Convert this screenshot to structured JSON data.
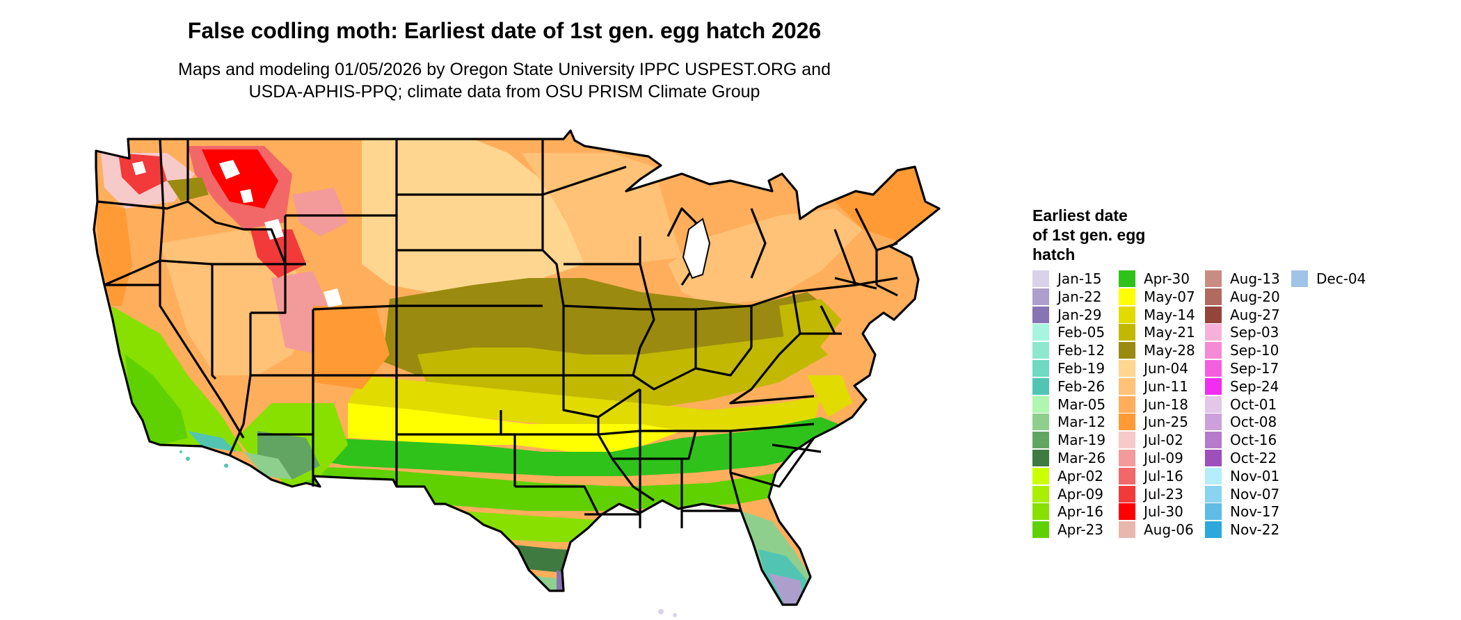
{
  "title": "False codling moth: Earliest date of 1st gen. egg hatch 2026",
  "subtitle_line1": "Maps and modeling 01/05/2026 by Oregon State University IPPC USPEST.ORG and",
  "subtitle_line2": "USDA-APHIS-PPQ; climate data from OSU PRISM Climate Group",
  "legend": {
    "title_lines": [
      "Earliest date",
      "of 1st gen. egg",
      "hatch"
    ],
    "entries": [
      {
        "label": "Jan-15",
        "color": "#dad2ea"
      },
      {
        "label": "Jan-22",
        "color": "#ad9fcb"
      },
      {
        "label": "Jan-29",
        "color": "#8774b4"
      },
      {
        "label": "Feb-05",
        "color": "#a8f5df"
      },
      {
        "label": "Feb-12",
        "color": "#8ee7cf"
      },
      {
        "label": "Feb-19",
        "color": "#6fd9c2"
      },
      {
        "label": "Feb-26",
        "color": "#52c5b2"
      },
      {
        "label": "Mar-05",
        "color": "#b0f6b0"
      },
      {
        "label": "Mar-12",
        "color": "#8ecf8e"
      },
      {
        "label": "Mar-19",
        "color": "#62a563"
      },
      {
        "label": "Mar-26",
        "color": "#3f7a41"
      },
      {
        "label": "Apr-02",
        "color": "#ccff00"
      },
      {
        "label": "Apr-09",
        "color": "#aaee00"
      },
      {
        "label": "Apr-16",
        "color": "#88e000"
      },
      {
        "label": "Apr-23",
        "color": "#5fd100"
      },
      {
        "label": "Apr-30",
        "color": "#2fc21b"
      },
      {
        "label": "May-07",
        "color": "#ffff00"
      },
      {
        "label": "May-14",
        "color": "#e1db00"
      },
      {
        "label": "May-21",
        "color": "#c2b800"
      },
      {
        "label": "May-28",
        "color": "#9a8a10"
      },
      {
        "label": "Jun-04",
        "color": "#ffd68f"
      },
      {
        "label": "Jun-11",
        "color": "#ffc277"
      },
      {
        "label": "Jun-18",
        "color": "#ffae5c"
      },
      {
        "label": "Jun-25",
        "color": "#ff9a35"
      },
      {
        "label": "Jul-02",
        "color": "#f7caca"
      },
      {
        "label": "Jul-09",
        "color": "#f39a9a"
      },
      {
        "label": "Jul-16",
        "color": "#f26868"
      },
      {
        "label": "Jul-23",
        "color": "#f23a3a"
      },
      {
        "label": "Jul-30",
        "color": "#ff0000"
      },
      {
        "label": "Aug-06",
        "color": "#e8b8ae"
      },
      {
        "label": "Aug-13",
        "color": "#c98c83"
      },
      {
        "label": "Aug-20",
        "color": "#b06a5f"
      },
      {
        "label": "Aug-27",
        "color": "#94443a"
      },
      {
        "label": "Sep-03",
        "color": "#f7b0da"
      },
      {
        "label": "Sep-10",
        "color": "#f58ad5"
      },
      {
        "label": "Sep-17",
        "color": "#f45fe0"
      },
      {
        "label": "Sep-24",
        "color": "#f02df0"
      },
      {
        "label": "Oct-01",
        "color": "#e4c6ea"
      },
      {
        "label": "Oct-08",
        "color": "#cca0da"
      },
      {
        "label": "Oct-16",
        "color": "#b57acc"
      },
      {
        "label": "Oct-22",
        "color": "#9e4fbc"
      },
      {
        "label": "Nov-01",
        "color": "#b4eefa"
      },
      {
        "label": "Nov-07",
        "color": "#88d4f1"
      },
      {
        "label": "Nov-17",
        "color": "#5ebce6"
      },
      {
        "label": "Nov-22",
        "color": "#2ea7dd"
      },
      {
        "label": "Dec-04",
        "color": "#a0c4e8"
      }
    ]
  },
  "map_colors": {
    "northwest_mountain_red": "#f23a3a",
    "snow_white": "#ffffff",
    "state_border": "#000000"
  }
}
